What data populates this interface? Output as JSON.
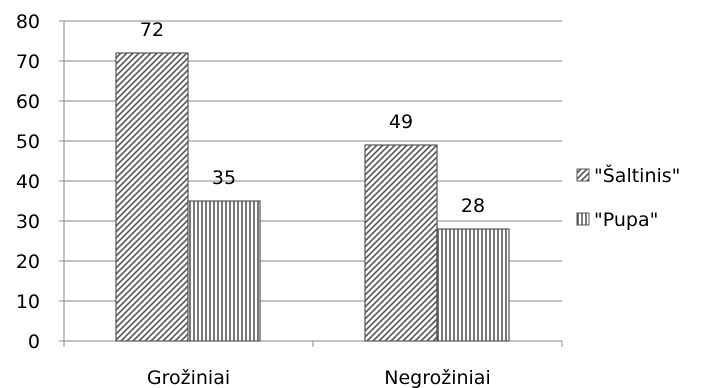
{
  "chart_data": {
    "type": "bar",
    "title": "",
    "xlabel": "",
    "ylabel": "",
    "categories": [
      "Grožiniai",
      "Negrožiniai"
    ],
    "series": [
      {
        "name": "\"Šaltinis\"",
        "values": [
          72,
          49
        ],
        "pattern": "diagonal-hatch"
      },
      {
        "name": "\"Pupa\"",
        "values": [
          35,
          28
        ],
        "pattern": "vertical-hatch"
      }
    ],
    "ylim": [
      0,
      80
    ],
    "yticks": [
      "0",
      "10",
      "20",
      "30",
      "40",
      "50",
      "60",
      "70",
      "80"
    ],
    "grid": true,
    "data_labels": true,
    "legend_position": "right",
    "colors": {
      "bar_fill": "#ffffff",
      "hatch": "#555555",
      "bar_outline": "#555555",
      "grid": "#8a8a8a"
    }
  }
}
